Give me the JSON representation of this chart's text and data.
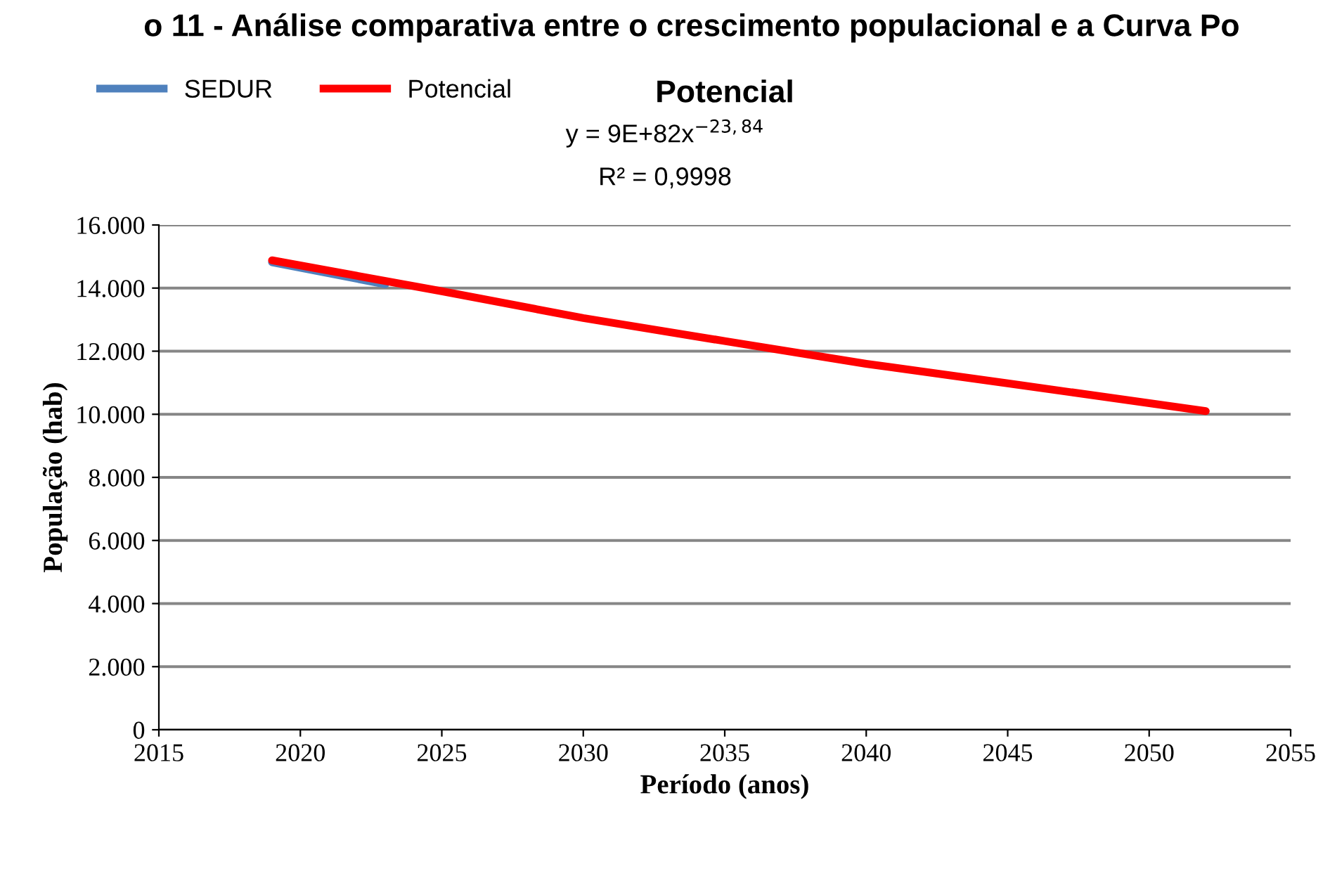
{
  "chart_data": {
    "type": "line",
    "title": "Potencial",
    "xlabel": "Período (anos)",
    "ylabel": "População (hab)",
    "annotations": [
      "o 11 - Análise comparativa entre o crescimento populacional e a Curva Po",
      "y = 9E+82x$^{−23,84}$",
      "R² = 0,9998"
    ],
    "series": [
      {
        "name": "SEDUR",
        "color": "#4f81bd",
        "x": [
          2019,
          2023
        ],
        "values": [
          14820,
          14120
        ]
      },
      {
        "name": "Potencial",
        "color": "#ff0000",
        "x": [
          2019,
          2025,
          2030,
          2035,
          2040,
          2045,
          2052
        ],
        "values": [
          14880,
          13900,
          13050,
          12320,
          11600,
          10980,
          10100
        ]
      }
    ],
    "xlim": [
      2015,
      2055
    ],
    "xticks": [
      2015,
      2020,
      2025,
      2030,
      2035,
      2040,
      2045,
      2050,
      2055
    ],
    "ylim": [
      0,
      16000
    ],
    "yticks": [
      0,
      {
        "value": 2000,
        "label": "2.000"
      },
      {
        "value": 4000,
        "label": "4.000"
      },
      {
        "value": 6000,
        "label": "6.000"
      },
      {
        "value": 8000,
        "label": "8.000"
      },
      {
        "value": 10000,
        "label": "10.000"
      },
      {
        "value": 12000,
        "label": "12.000"
      },
      {
        "value": 14000,
        "label": "14.000"
      },
      {
        "value": 16000,
        "label": "16.000"
      }
    ],
    "grid": "y",
    "legend": "top left",
    "marker": "none",
    "line_style": "solid"
  }
}
